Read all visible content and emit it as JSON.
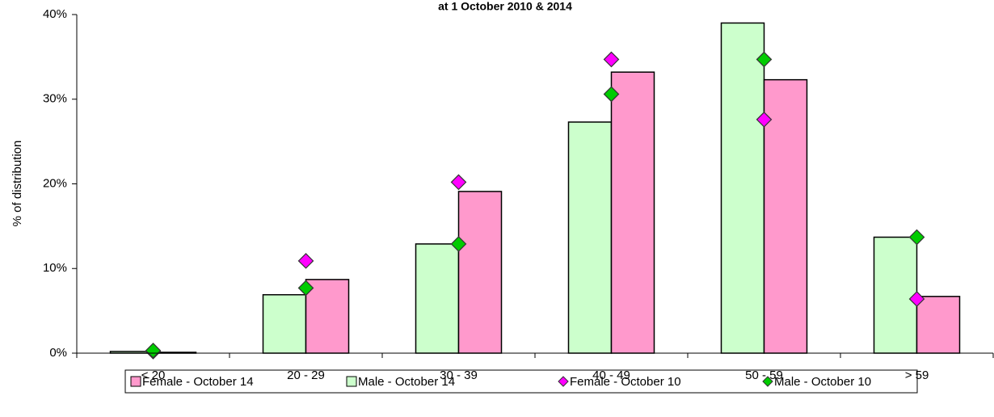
{
  "chart_data": {
    "type": "bar",
    "title": "at 1 October 2010 & 2014",
    "ylabel": "% of distribution",
    "categories": [
      "< 20",
      "20 - 29",
      "30 - 39",
      "40 - 49",
      "50 - 59",
      "> 59"
    ],
    "series": [
      {
        "name": "Female - October 14",
        "color": "#ff99cc",
        "kind": "bar",
        "values": [
          0.1,
          8.7,
          19.1,
          33.2,
          32.3,
          6.7
        ]
      },
      {
        "name": "Male - October 14",
        "color": "#ccffcc",
        "kind": "bar",
        "values": [
          0.2,
          6.9,
          12.9,
          27.3,
          39.0,
          13.7
        ]
      },
      {
        "name": "Female - October 10",
        "color": "#ff00ff",
        "kind": "diamond",
        "values": [
          0.2,
          10.9,
          20.2,
          34.7,
          27.6,
          6.4
        ]
      },
      {
        "name": "Male - October 10",
        "color": "#00cc00",
        "kind": "diamond",
        "values": [
          0.3,
          7.7,
          12.9,
          30.6,
          34.7,
          13.7
        ]
      }
    ],
    "ylim": [
      0,
      40
    ],
    "yticks": [
      {
        "value": 0,
        "label": "0%"
      },
      {
        "value": 10,
        "label": "10%"
      },
      {
        "value": 20,
        "label": "20%"
      },
      {
        "value": 30,
        "label": "30%"
      },
      {
        "value": 40,
        "label": "40%"
      }
    ],
    "grid": false
  }
}
